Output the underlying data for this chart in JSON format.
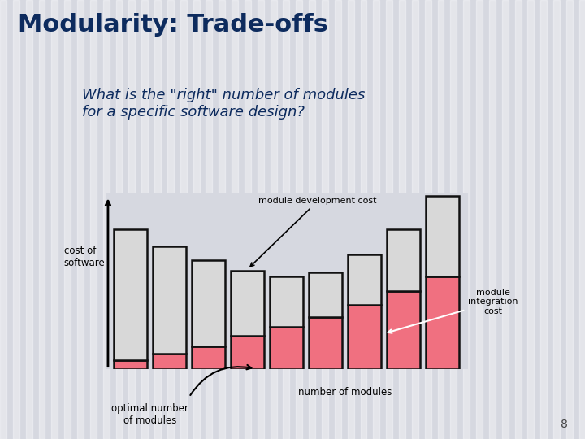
{
  "title": "Modularity: Trade-offs",
  "subtitle": "What is the \"right\" number of modules\nfor a specific software design?",
  "background_color": "#d6d8e0",
  "title_color": "#0d2b5e",
  "title_fontsize": 22,
  "subtitle_fontsize": 13,
  "bar_gray": "#d8d8d8",
  "bar_pink": "#f07080",
  "bar_edge": "#111111",
  "num_bars": 9,
  "dev_costs": [
    0.88,
    0.72,
    0.58,
    0.44,
    0.34,
    0.3,
    0.34,
    0.42,
    0.54
  ],
  "int_costs": [
    0.06,
    0.1,
    0.15,
    0.22,
    0.28,
    0.35,
    0.43,
    0.52,
    0.62
  ],
  "ylabel": "cost of\nsoftware",
  "xlabel": "number of modules",
  "label_dev_cost": "module development cost",
  "label_int_cost": "module\nintegration\ncost",
  "label_optimal": "optimal number\nof modules",
  "page_num": "8"
}
